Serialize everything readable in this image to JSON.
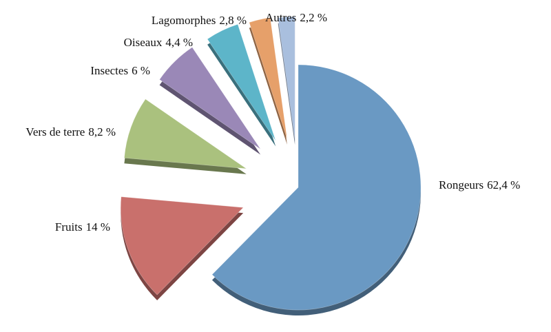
{
  "chart_data": {
    "type": "pie",
    "categories": [
      "Rongeurs",
      "Fruits",
      "Vers de terre",
      "Insectes",
      "Oiseaux",
      "Lagomorphes",
      "Autres"
    ],
    "values": [
      62.4,
      14,
      8.2,
      6,
      4.4,
      2.8,
      2.2
    ],
    "value_labels": [
      "62,4 %",
      "14 %",
      "8,2 %",
      "6 %",
      "4,4 %",
      "2,8 %",
      "2,2 %"
    ],
    "colors": [
      "#6a99c3",
      "#c9706c",
      "#aac17e",
      "#9a88b7",
      "#5db5c9",
      "#e6a06a",
      "#a9bfde"
    ]
  }
}
